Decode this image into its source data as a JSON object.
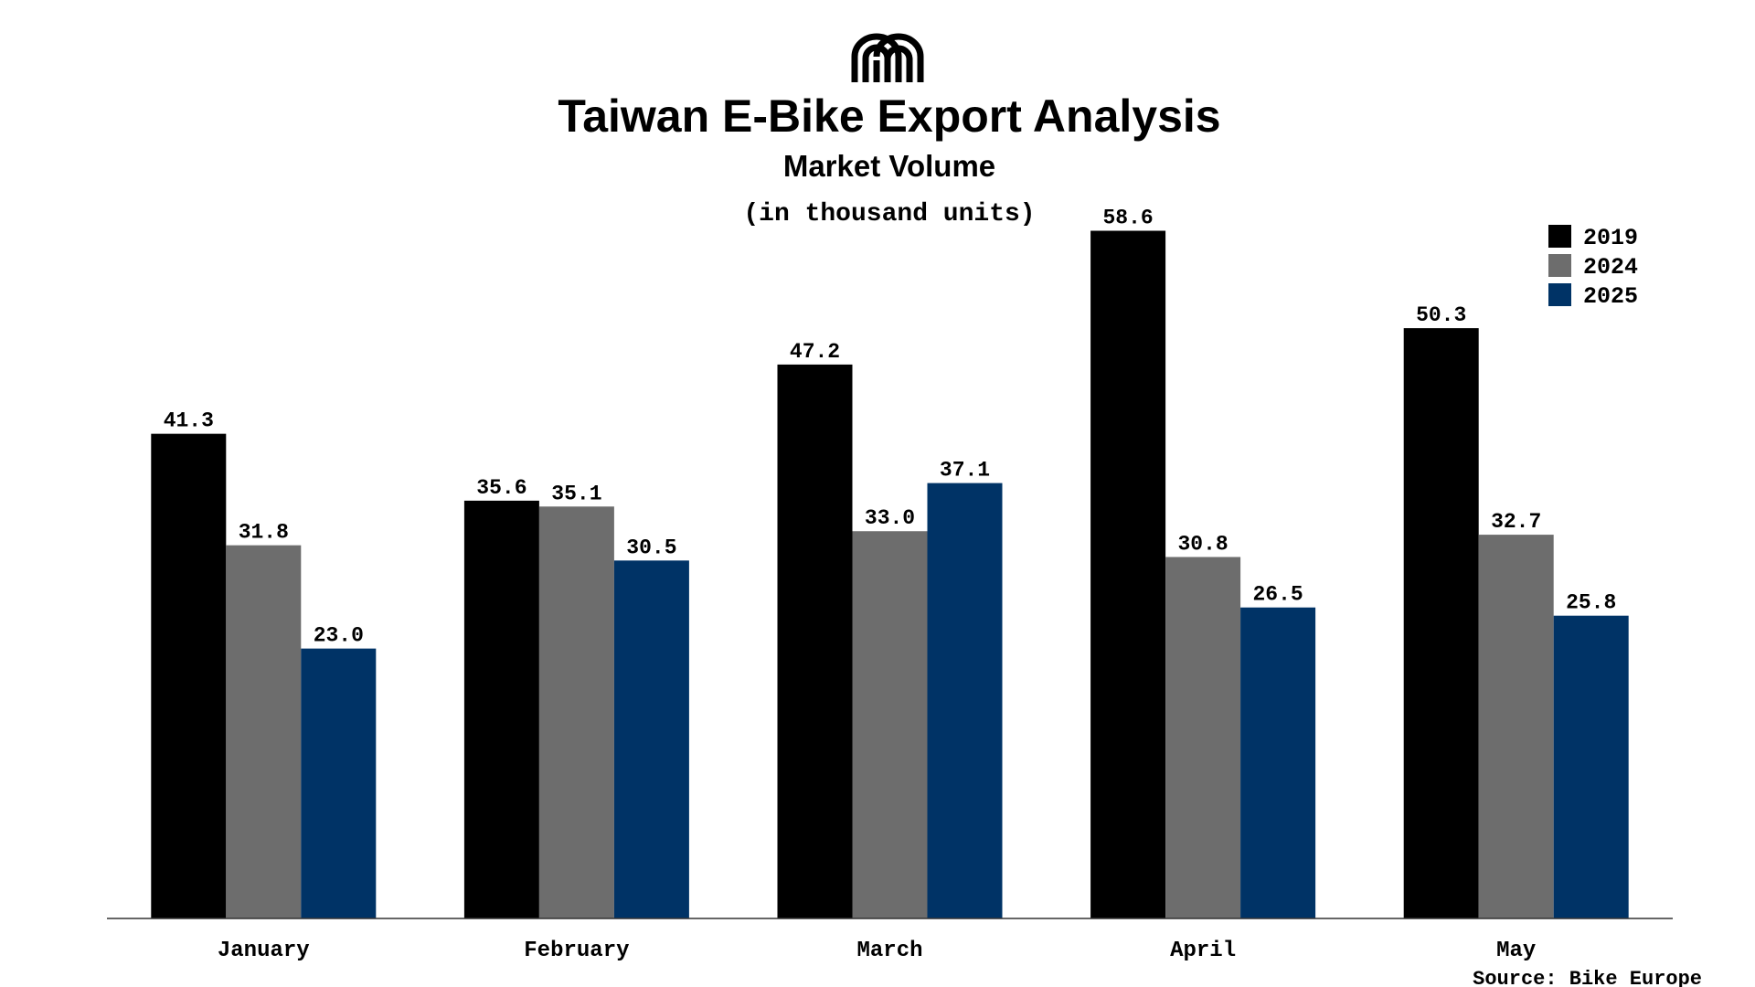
{
  "chart_data": {
    "type": "bar",
    "title": "Taiwan E-Bike Export Analysis",
    "subtitle": "Market Volume",
    "units_label": "(in thousand units)",
    "categories": [
      "January",
      "February",
      "March",
      "April",
      "May"
    ],
    "series": [
      {
        "name": "2019",
        "color": "#000000",
        "values": [
          41.3,
          35.6,
          47.2,
          58.6,
          50.3
        ]
      },
      {
        "name": "2024",
        "color": "#6d6d6d",
        "values": [
          31.8,
          35.1,
          33.0,
          30.8,
          32.7
        ]
      },
      {
        "name": "2025",
        "color": "#003366",
        "values": [
          23.0,
          30.5,
          37.1,
          26.5,
          25.8
        ]
      }
    ],
    "ylim": [
      0,
      63
    ],
    "grid": false,
    "legend_position": "top-right",
    "source": "Source: Bike Europe"
  },
  "branding": {
    "logo_icon": "arch-logo-icon"
  }
}
